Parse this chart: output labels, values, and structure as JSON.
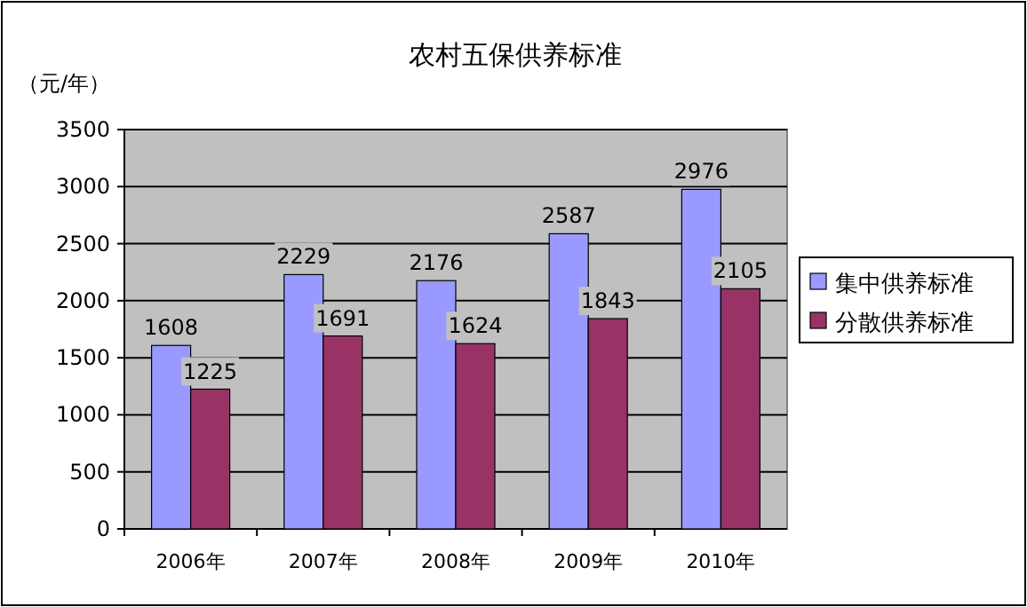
{
  "chart_data": {
    "type": "bar",
    "title": "农村五保供养标准",
    "ylabel": "（元/年）",
    "categories": [
      "2006年",
      "2007年",
      "2008年",
      "2009年",
      "2010年"
    ],
    "series": [
      {
        "name": "集中供养标准",
        "color": "#9999ff",
        "values": [
          1608,
          2229,
          2176,
          2587,
          2976
        ]
      },
      {
        "name": "分散供养标准",
        "color": "#993366",
        "values": [
          1225,
          1691,
          1624,
          1843,
          2105
        ]
      }
    ],
    "ylim": [
      0,
      3500
    ],
    "yticks": [
      0,
      500,
      1000,
      1500,
      2000,
      2500,
      3000,
      3500
    ],
    "grid": "y",
    "legend": "right",
    "data_labels": true
  }
}
